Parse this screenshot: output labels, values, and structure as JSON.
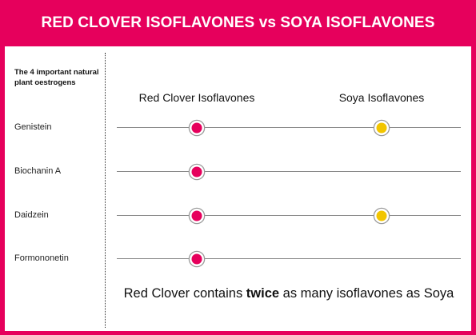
{
  "title": "RED CLOVER ISOFLAVONES vs SOYA ISOFLAVONES",
  "side_heading": "The 4 important natural plant oestrogens",
  "columns": [
    {
      "label": "Red Clover Isoflavones",
      "color": "#e6005c"
    },
    {
      "label": "Soya Isoflavones",
      "color": "#f2c500"
    }
  ],
  "rows": [
    {
      "label": "Genistein",
      "red_clover": true,
      "soya": true
    },
    {
      "label": "Biochanin A",
      "red_clover": true,
      "soya": false
    },
    {
      "label": "Daidzein",
      "red_clover": true,
      "soya": true
    },
    {
      "label": "Formononetin",
      "red_clover": true,
      "soya": false
    }
  ],
  "footer": {
    "before": "Red Clover contains ",
    "emphasis": "twice",
    "after": " as many isoflavones as Soya"
  }
}
